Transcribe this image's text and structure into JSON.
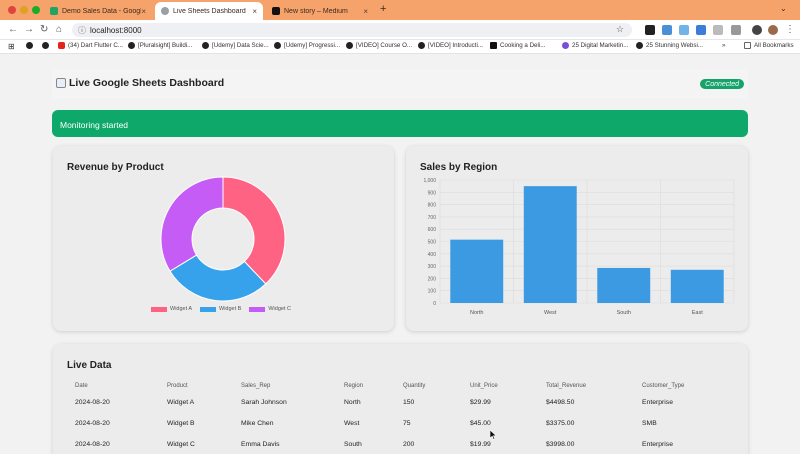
{
  "browser": {
    "tabs": [
      {
        "label": "Demo Sales Data - Google Sh...",
        "favicon_color": "#1fa463"
      },
      {
        "label": "Live Sheets Dashboard",
        "favicon_color": "#9aa0a6"
      },
      {
        "label": "New story – Medium",
        "favicon_color": "#111111"
      }
    ],
    "url": "localhost:8000",
    "bookmarks": [
      "(34) Dart Flutter C...",
      "[Pluralsight] Buildi...",
      "[Udemy] Data Scie...",
      "[Udemy] Progressi...",
      "[VIDEO] Course O...",
      "[VIDEO] Introducti...",
      "Cooking a Deli...",
      "25 Digital Marketin...",
      "25 Stunning Websi...",
      "All Bookmarks"
    ]
  },
  "header": {
    "title": "Live Google Sheets Dashboard",
    "status": "Connected"
  },
  "banner": {
    "message": "Monitoring started"
  },
  "charts": {
    "revenue_title": "Revenue by Product",
    "region_title": "Sales by Region",
    "live_title": "Live Data"
  },
  "chart_data": [
    {
      "type": "pie",
      "title": "Revenue by Product",
      "categories": [
        "Widget A",
        "Widget B",
        "Widget C"
      ],
      "values": [
        4498.5,
        3375.0,
        3998.0
      ],
      "colors": [
        "#ff6384",
        "#36a2eb",
        "#c55cf5"
      ],
      "legend": "bottom"
    },
    {
      "type": "bar",
      "title": "Sales by Region",
      "categories": [
        "North",
        "West",
        "South",
        "East"
      ],
      "values": [
        515,
        950,
        285,
        270
      ],
      "ylim": [
        0,
        1000
      ],
      "yticks": [
        "0",
        "100",
        "200",
        "300",
        "400",
        "500",
        "600",
        "700",
        "800",
        "900",
        "1,000"
      ],
      "color": "#3b9ae1",
      "grid": true
    }
  ],
  "table": {
    "columns": [
      "Date",
      "Product",
      "Sales_Rep",
      "Region",
      "Quantity",
      "Unit_Price",
      "Total_Revenue",
      "Customer_Type"
    ],
    "rows": [
      [
        "2024-08-20",
        "Widget A",
        "Sarah Johnson",
        "North",
        "150",
        "$29.99",
        "$4498.50",
        "Enterprise"
      ],
      [
        "2024-08-20",
        "Widget B",
        "Mike Chen",
        "West",
        "75",
        "$45.00",
        "$3375.00",
        "SMB"
      ],
      [
        "2024-08-20",
        "Widget C",
        "Emma Davis",
        "South",
        "200",
        "$19.99",
        "$3998.00",
        "Enterprise"
      ]
    ]
  }
}
